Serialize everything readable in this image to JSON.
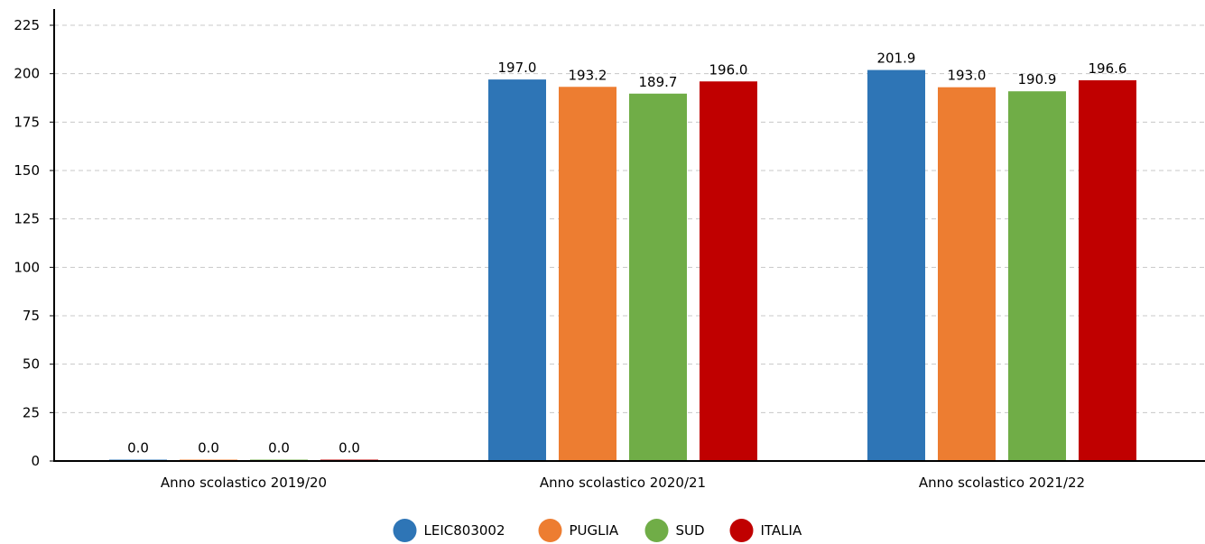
{
  "chart_data": {
    "type": "bar",
    "categories": [
      "Anno scolastico 2019/20",
      "Anno scolastico 2020/21",
      "Anno scolastico 2021/22"
    ],
    "series": [
      {
        "name": "LEIC803002",
        "color": "#2e75b6",
        "values": [
          0.0,
          197.0,
          201.9
        ],
        "labels": [
          "0.0",
          "197.0",
          "201.9"
        ]
      },
      {
        "name": "PUGLIA",
        "color": "#ed7d31",
        "values": [
          0.0,
          193.2,
          193.0
        ],
        "labels": [
          "0.0",
          "193.2",
          "193.0"
        ]
      },
      {
        "name": "SUD",
        "color": "#70ad47",
        "values": [
          0.0,
          189.7,
          190.9
        ],
        "labels": [
          "0.0",
          "189.7",
          "190.9"
        ]
      },
      {
        "name": "ITALIA",
        "color": "#c00000",
        "values": [
          0.0,
          196.0,
          196.6
        ],
        "labels": [
          "0.0",
          "196.0",
          "196.6"
        ]
      }
    ],
    "yticks": [
      "0",
      "25",
      "50",
      "75",
      "100",
      "125",
      "150",
      "175",
      "200",
      "225"
    ],
    "ylim": [
      0,
      225
    ],
    "grid": true,
    "legend_position": "bottom-center"
  }
}
